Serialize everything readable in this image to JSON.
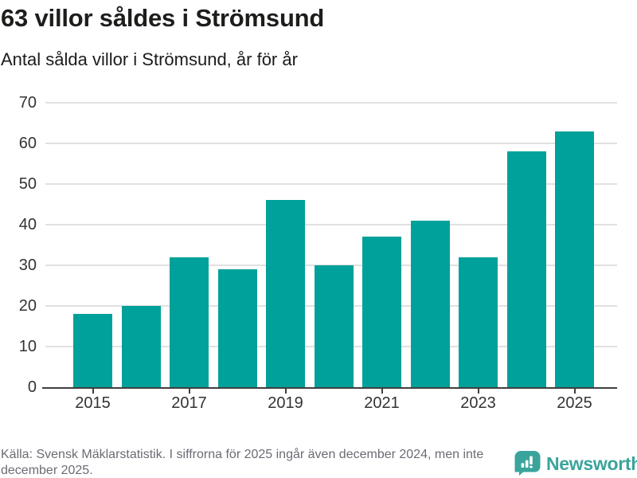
{
  "header": {
    "title": "63 villor såldes i Strömsund",
    "subtitle": "Antal sålda villor i Strömsund, år för år"
  },
  "chart_data": {
    "type": "bar",
    "title": "63 villor såldes i Strömsund",
    "subtitle": "Antal sålda villor i Strömsund, år för år",
    "categories": [
      "2015",
      "2016",
      "2017",
      "2018",
      "2019",
      "2020",
      "2021",
      "2022",
      "2023",
      "2024",
      "2025"
    ],
    "values": [
      18,
      20,
      32,
      29,
      46,
      30,
      37,
      41,
      32,
      58,
      63
    ],
    "xlabel": "",
    "ylabel": "",
    "ylim": [
      0,
      70
    ],
    "yticks": [
      0,
      10,
      20,
      30,
      40,
      50,
      60,
      70
    ],
    "xtick_labels": [
      "2015",
      "2017",
      "2019",
      "2021",
      "2023",
      "2025"
    ],
    "grid": true,
    "legend_position": "none",
    "bar_color": "#00a19a"
  },
  "footer": {
    "source": "Källa: Svensk Mäklarstatistik. I siffrorna för 2025 ingår även december 2024, men inte december 2025.",
    "brand": "Newsworthy"
  },
  "colors": {
    "bar": "#00a19a",
    "gridline": "#e1e1e1",
    "axis": "#3f3f3f",
    "tick_label": "#333333",
    "source_text": "#6b6b74",
    "brand": "#3aa49c"
  }
}
